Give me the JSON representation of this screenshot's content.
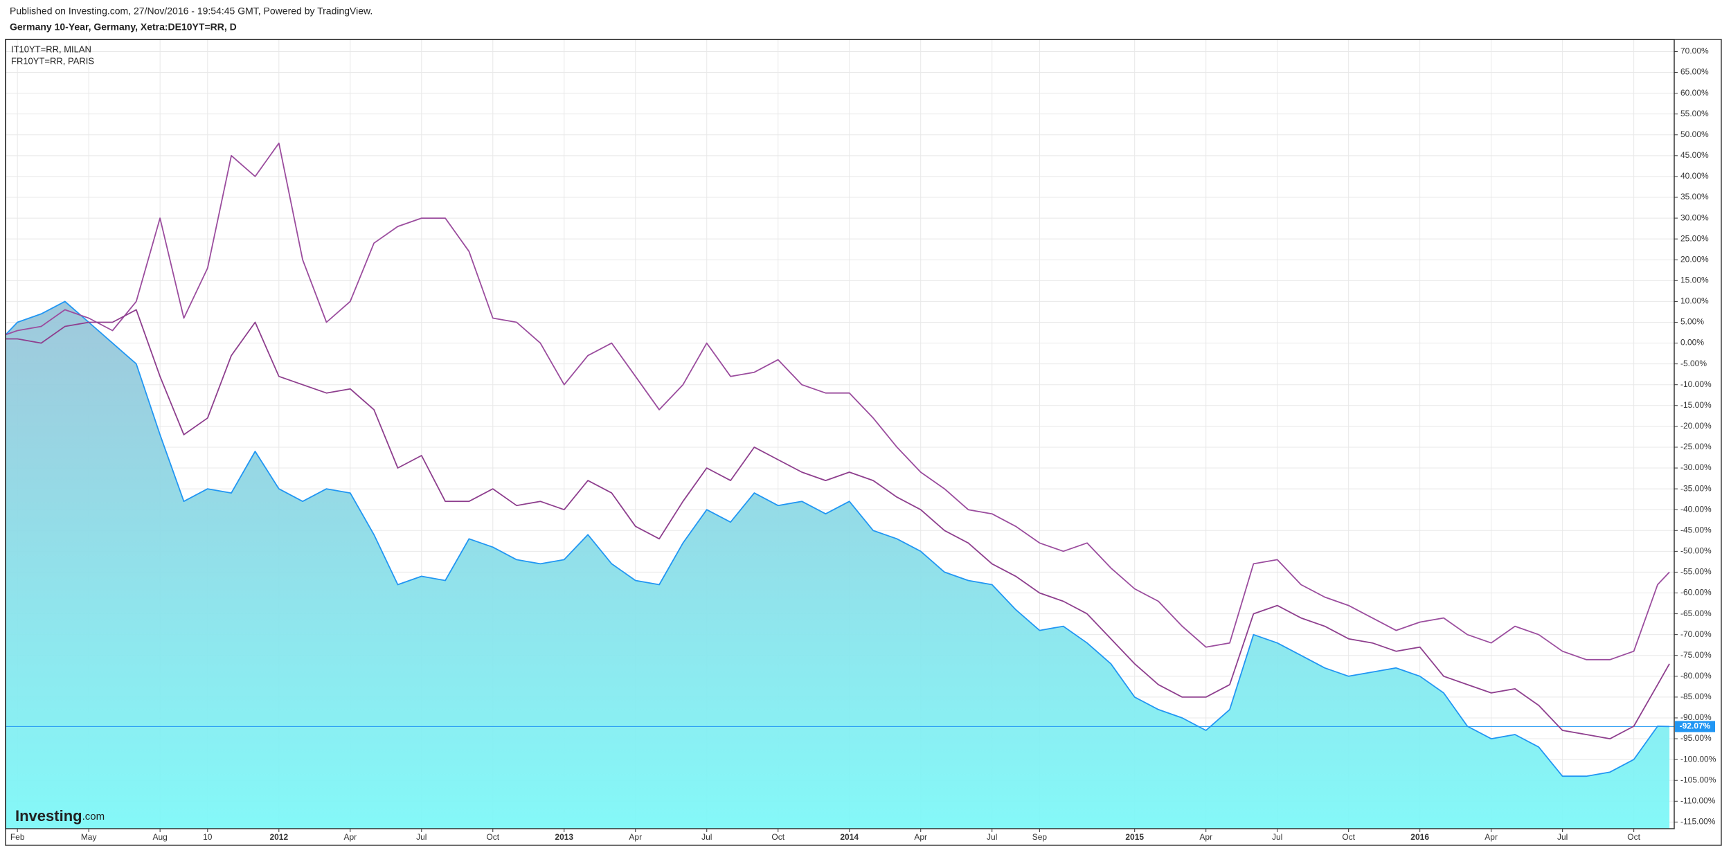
{
  "chart_data": {
    "type": "line",
    "source": "Published on Investing.com, 27/Nov/2016 - 19:54:45 GMT, Powered by TradingView.",
    "title": "Germany 10-Year, Germany, Xetra:DE10YT=RR, D",
    "logo": "Investing",
    "logo_suffix": ".com",
    "x": [
      0.5,
      1,
      2,
      3,
      4,
      5,
      6,
      7,
      8,
      9,
      10,
      11,
      12,
      13,
      14,
      15,
      16,
      17,
      18,
      19,
      20,
      21,
      22,
      23,
      24,
      25,
      26,
      27,
      28,
      29,
      30,
      31,
      32,
      33,
      34,
      35,
      36,
      37,
      38,
      39,
      40,
      41,
      42,
      43,
      44,
      45,
      46,
      47,
      48,
      49,
      50,
      51,
      52,
      53,
      54,
      55,
      56,
      57,
      58,
      59,
      60,
      61,
      62,
      63,
      64,
      65,
      66,
      67,
      68,
      69,
      70,
      70.5
    ],
    "series": [
      {
        "color": "#2196f3",
        "area": true,
        "values": [
          2,
          5,
          7,
          10,
          5,
          0,
          -5,
          -22,
          -38,
          -35,
          -36,
          -26,
          -35,
          -38,
          -35,
          -36,
          -46,
          -58,
          -56,
          -57,
          -47,
          -49,
          -52,
          -53,
          -52,
          -46,
          -53,
          -57,
          -58,
          -48,
          -40,
          -43,
          -36,
          -39,
          -38,
          -41,
          -38,
          -45,
          -47,
          -50,
          -55,
          -57,
          -58,
          -64,
          -69,
          -68,
          -72,
          -77,
          -85,
          -88,
          -90,
          -93,
          -88,
          -70,
          -72,
          -75,
          -78,
          -80,
          -79,
          -78,
          -80,
          -84,
          -92,
          -95,
          -94,
          -97,
          -104,
          -104,
          -103,
          -100,
          -92,
          -92.07
        ],
        "value_labels": [
          null,
          null,
          null,
          null,
          null,
          null,
          null,
          null,
          null,
          null,
          null,
          null,
          null,
          null,
          null,
          null,
          null,
          null,
          null,
          null,
          null,
          null,
          null,
          null,
          null,
          null,
          null,
          null,
          null,
          null,
          null,
          null,
          null,
          null,
          null,
          null,
          null,
          null,
          null,
          null,
          null,
          null,
          null,
          null,
          null,
          null,
          null,
          null,
          null,
          null,
          null,
          null,
          null,
          null,
          null,
          null,
          null,
          null,
          null,
          null,
          null,
          null,
          null,
          null,
          null,
          null,
          null,
          null,
          null,
          null,
          null,
          "-92.07%"
        ]
      },
      {
        "name": "IT10YT=RR, MILAN",
        "color": "#9b4d9e",
        "values": [
          2,
          3,
          4,
          8,
          6,
          3,
          10,
          30,
          6,
          18,
          45,
          40,
          48,
          20,
          5,
          10,
          24,
          28,
          30,
          30,
          22,
          6,
          5,
          0,
          -10,
          -3,
          0,
          -8,
          -16,
          -10,
          0,
          -8,
          -7,
          -4,
          -10,
          -12,
          -12,
          -18,
          -25,
          -31,
          -35,
          -40,
          -41,
          -44,
          -48,
          -50,
          -48,
          -54,
          -59,
          -62,
          -68,
          -73,
          -72,
          -53,
          -52,
          -58,
          -61,
          -63,
          -66,
          -69,
          -67,
          -66,
          -70,
          -72,
          -68,
          -70,
          -74,
          -76,
          -76,
          -74,
          -58,
          -55
        ]
      },
      {
        "name": "FR10YT=RR, PARIS",
        "color": "#8e3f8e",
        "values": [
          1,
          1,
          0,
          4,
          5,
          5,
          8,
          -8,
          -22,
          -18,
          -3,
          5,
          -8,
          -10,
          -12,
          -11,
          -16,
          -30,
          -27,
          -38,
          -38,
          -35,
          -39,
          -38,
          -40,
          -33,
          -36,
          -44,
          -47,
          -38,
          -30,
          -33,
          -25,
          -28,
          -31,
          -33,
          -31,
          -33,
          -37,
          -40,
          -45,
          -48,
          -53,
          -56,
          -60,
          -62,
          -65,
          -71,
          -77,
          -82,
          -85,
          -85,
          -82,
          -65,
          -63,
          -66,
          -68,
          -71,
          -72,
          -74,
          -73,
          -80,
          -82,
          -84,
          -83,
          -87,
          -93,
          -94,
          -95,
          -92,
          -82,
          -77
        ]
      }
    ],
    "xlim": [
      0.5,
      70.7
    ],
    "xticks": [
      {
        "value": 1,
        "label": "Feb"
      },
      {
        "value": 4,
        "label": "May"
      },
      {
        "value": 7,
        "label": "Aug"
      },
      {
        "value": 9,
        "label": "10"
      },
      {
        "value": 12,
        "label": "2012"
      },
      {
        "value": 15,
        "label": "Apr"
      },
      {
        "value": 18,
        "label": "Jul"
      },
      {
        "value": 21,
        "label": "Oct"
      },
      {
        "value": 24,
        "label": "2013"
      },
      {
        "value": 27,
        "label": "Apr"
      },
      {
        "value": 30,
        "label": "Jul"
      },
      {
        "value": 33,
        "label": "Oct"
      },
      {
        "value": 36,
        "label": "2014"
      },
      {
        "value": 39,
        "label": "Apr"
      },
      {
        "value": 42,
        "label": "Jul"
      },
      {
        "value": 44,
        "label": "Sep"
      },
      {
        "value": 48,
        "label": "2015"
      },
      {
        "value": 51,
        "label": "Apr"
      },
      {
        "value": 54,
        "label": "Jul"
      },
      {
        "value": 57,
        "label": "Oct"
      },
      {
        "value": 60,
        "label": "2016"
      },
      {
        "value": 63,
        "label": "Apr"
      },
      {
        "value": 66,
        "label": "Jul"
      },
      {
        "value": 69,
        "label": "Oct"
      }
    ],
    "ylim": [
      -116.6,
      72.9
    ],
    "yticks": [
      {
        "value": 70,
        "label": "70.00%"
      },
      {
        "value": 65,
        "label": "65.00%"
      },
      {
        "value": 60,
        "label": "60.00%"
      },
      {
        "value": 55,
        "label": "55.00%"
      },
      {
        "value": 50,
        "label": "50.00%"
      },
      {
        "value": 45,
        "label": "45.00%"
      },
      {
        "value": 40,
        "label": "40.00%"
      },
      {
        "value": 35,
        "label": "35.00%"
      },
      {
        "value": 30,
        "label": "30.00%"
      },
      {
        "value": 25,
        "label": "25.00%"
      },
      {
        "value": 20,
        "label": "20.00%"
      },
      {
        "value": 15,
        "label": "15.00%"
      },
      {
        "value": 10,
        "label": "10.00%"
      },
      {
        "value": 5,
        "label": "5.00%"
      },
      {
        "value": 0,
        "label": "0.00%"
      },
      {
        "value": -5,
        "label": "-5.00%"
      },
      {
        "value": -10,
        "label": "-10.00%"
      },
      {
        "value": -15,
        "label": "-15.00%"
      },
      {
        "value": -20,
        "label": "-20.00%"
      },
      {
        "value": -25,
        "label": "-25.00%"
      },
      {
        "value": -30,
        "label": "-30.00%"
      },
      {
        "value": -35,
        "label": "-35.00%"
      },
      {
        "value": -40,
        "label": "-40.00%"
      },
      {
        "value": -45,
        "label": "-45.00%"
      },
      {
        "value": -50,
        "label": "-50.00%"
      },
      {
        "value": -55,
        "label": "-55.00%"
      },
      {
        "value": -60,
        "label": "-60.00%"
      },
      {
        "value": -65,
        "label": "-65.00%"
      },
      {
        "value": -70,
        "label": "-70.00%"
      },
      {
        "value": -75,
        "label": "-75.00%"
      },
      {
        "value": -80,
        "label": "-80.00%"
      },
      {
        "value": -85,
        "label": "-85.00%"
      },
      {
        "value": -90,
        "label": "-90.00%"
      },
      {
        "value": -95,
        "label": "-95.00%"
      },
      {
        "value": -100,
        "label": "-100.00%"
      },
      {
        "value": -105,
        "label": "-105.00%"
      },
      {
        "value": -110,
        "label": "-110.00%"
      },
      {
        "value": -115,
        "label": "-115.00%"
      }
    ],
    "grid": true,
    "legend": "top-left"
  }
}
